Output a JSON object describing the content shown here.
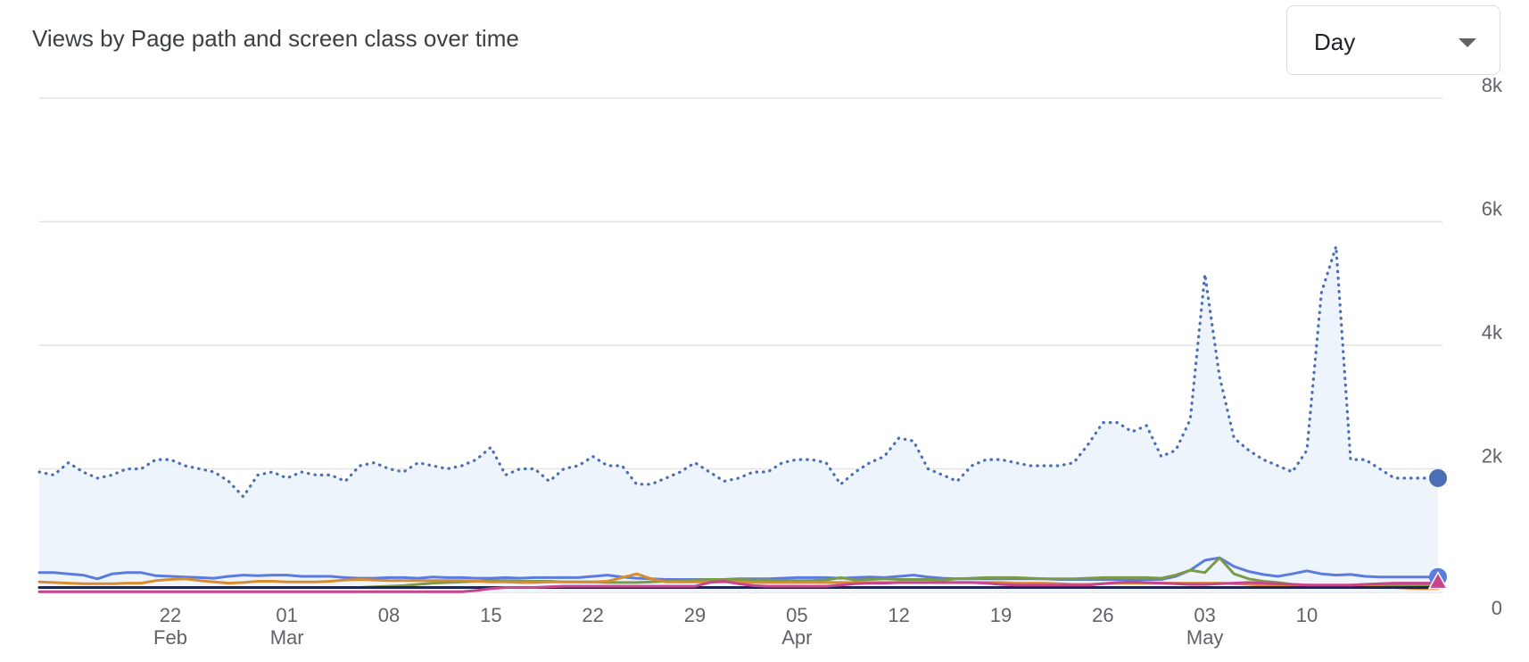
{
  "header": {
    "title": "Views by Page path and screen class over time",
    "granularity": "Day"
  },
  "chart_data": {
    "type": "line",
    "title": "Views by Page path and screen class over time",
    "x": [
      "2024-02-13",
      "2024-02-14",
      "2024-02-15",
      "2024-02-16",
      "2024-02-17",
      "2024-02-18",
      "2024-02-19",
      "2024-02-20",
      "2024-02-21",
      "2024-02-22",
      "2024-02-23",
      "2024-02-24",
      "2024-02-25",
      "2024-02-26",
      "2024-02-27",
      "2024-02-28",
      "2024-02-29",
      "2024-03-01",
      "2024-03-02",
      "2024-03-03",
      "2024-03-04",
      "2024-03-05",
      "2024-03-06",
      "2024-03-07",
      "2024-03-08",
      "2024-03-09",
      "2024-03-10",
      "2024-03-11",
      "2024-03-12",
      "2024-03-13",
      "2024-03-14",
      "2024-03-15",
      "2024-03-16",
      "2024-03-17",
      "2024-03-18",
      "2024-03-19",
      "2024-03-20",
      "2024-03-21",
      "2024-03-22",
      "2024-03-23",
      "2024-03-24",
      "2024-03-25",
      "2024-03-26",
      "2024-03-27",
      "2024-03-28",
      "2024-03-29",
      "2024-03-30",
      "2024-03-31",
      "2024-04-01",
      "2024-04-02",
      "2024-04-03",
      "2024-04-04",
      "2024-04-05",
      "2024-04-06",
      "2024-04-07",
      "2024-04-08",
      "2024-04-09",
      "2024-04-10",
      "2024-04-11",
      "2024-04-12",
      "2024-04-13",
      "2024-04-14",
      "2024-04-15",
      "2024-04-16",
      "2024-04-17",
      "2024-04-18",
      "2024-04-19",
      "2024-04-20",
      "2024-04-21",
      "2024-04-22",
      "2024-04-23",
      "2024-04-24",
      "2024-04-25",
      "2024-04-26",
      "2024-04-27",
      "2024-04-28",
      "2024-04-29",
      "2024-04-30",
      "2024-05-01",
      "2024-05-02",
      "2024-05-03",
      "2024-05-04",
      "2024-05-05",
      "2024-05-06",
      "2024-05-07",
      "2024-05-08",
      "2024-05-09",
      "2024-05-10",
      "2024-05-11",
      "2024-05-12",
      "2024-05-13",
      "2024-05-14",
      "2024-05-15",
      "2024-05-16",
      "2024-05-17",
      "2024-05-18",
      "2024-05-19"
    ],
    "x_ticks": [
      {
        "date": "2024-02-22",
        "label": "22",
        "sub": "Feb"
      },
      {
        "date": "2024-03-01",
        "label": "01",
        "sub": "Mar"
      },
      {
        "date": "2024-03-08",
        "label": "08",
        "sub": ""
      },
      {
        "date": "2024-03-15",
        "label": "15",
        "sub": ""
      },
      {
        "date": "2024-03-22",
        "label": "22",
        "sub": ""
      },
      {
        "date": "2024-03-29",
        "label": "29",
        "sub": ""
      },
      {
        "date": "2024-04-05",
        "label": "05",
        "sub": "Apr"
      },
      {
        "date": "2024-04-12",
        "label": "12",
        "sub": ""
      },
      {
        "date": "2024-04-19",
        "label": "19",
        "sub": ""
      },
      {
        "date": "2024-04-26",
        "label": "26",
        "sub": ""
      },
      {
        "date": "2024-05-03",
        "label": "03",
        "sub": "May"
      },
      {
        "date": "2024-05-10",
        "label": "10",
        "sub": ""
      }
    ],
    "y_ticks": [
      {
        "value": 0,
        "label": "0"
      },
      {
        "value": 2000,
        "label": "2k"
      },
      {
        "value": 4000,
        "label": "4k"
      },
      {
        "value": 6000,
        "label": "6k"
      },
      {
        "value": 8000,
        "label": "8k"
      }
    ],
    "ylim": [
      0,
      8000
    ],
    "grid": true,
    "series": [
      {
        "color": "#4a6fb5",
        "style": "dotted",
        "fill": "#eef4fc",
        "marker": "circle",
        "values": [
          1950,
          1900,
          2100,
          1950,
          1850,
          1900,
          2000,
          2000,
          2150,
          2150,
          2050,
          2000,
          1950,
          1800,
          1550,
          1900,
          1950,
          1850,
          1950,
          1900,
          1900,
          1800,
          2050,
          2100,
          2000,
          1950,
          2100,
          2050,
          2000,
          2050,
          2150,
          2350,
          1900,
          2000,
          2000,
          1800,
          2000,
          2050,
          2200,
          2050,
          2050,
          1750,
          1750,
          1850,
          1950,
          2100,
          1950,
          1800,
          1850,
          1950,
          1950,
          2100,
          2150,
          2150,
          2100,
          1750,
          1950,
          2100,
          2200,
          2500,
          2450,
          2000,
          1900,
          1800,
          2050,
          2150,
          2150,
          2100,
          2050,
          2050,
          2050,
          2100,
          2400,
          2750,
          2750,
          2600,
          2700,
          2200,
          2300,
          2800,
          5150,
          3500,
          2500,
          2300,
          2150,
          2050,
          1950,
          2300,
          4850,
          5600,
          2150,
          2150,
          2000,
          1850,
          1850,
          1850,
          1850
        ]
      },
      {
        "color": "#5b7be0",
        "style": "solid",
        "marker": "circle",
        "values": [
          320,
          320,
          300,
          280,
          220,
          300,
          320,
          320,
          270,
          260,
          250,
          240,
          230,
          260,
          280,
          270,
          280,
          280,
          260,
          260,
          260,
          240,
          230,
          230,
          240,
          240,
          230,
          250,
          240,
          240,
          230,
          230,
          240,
          230,
          240,
          240,
          240,
          240,
          260,
          280,
          250,
          230,
          220,
          210,
          210,
          210,
          210,
          210,
          220,
          220,
          220,
          230,
          240,
          240,
          240,
          230,
          240,
          250,
          240,
          260,
          280,
          250,
          230,
          220,
          220,
          220,
          220,
          220,
          220,
          220,
          210,
          210,
          210,
          210,
          210,
          210,
          210,
          210,
          260,
          360,
          520,
          560,
          420,
          340,
          290,
          260,
          300,
          350,
          300,
          280,
          290,
          260,
          250,
          250,
          250,
          250,
          250
        ]
      },
      {
        "color": "#7a9a48",
        "style": "solid",
        "marker": "none",
        "values": [
          80,
          80,
          80,
          80,
          80,
          80,
          80,
          80,
          80,
          80,
          80,
          80,
          80,
          80,
          80,
          80,
          80,
          80,
          80,
          80,
          80,
          80,
          80,
          90,
          100,
          110,
          130,
          150,
          160,
          170,
          180,
          190,
          190,
          180,
          180,
          180,
          170,
          170,
          170,
          160,
          160,
          160,
          170,
          180,
          190,
          200,
          210,
          210,
          210,
          200,
          200,
          190,
          190,
          190,
          200,
          240,
          200,
          210,
          220,
          210,
          210,
          210,
          200,
          220,
          230,
          240,
          240,
          240,
          230,
          220,
          220,
          220,
          230,
          240,
          240,
          240,
          240,
          230,
          280,
          360,
          320,
          560,
          300,
          220,
          180,
          160,
          130,
          120,
          110,
          110,
          110,
          110,
          110,
          110,
          110,
          110,
          110
        ]
      },
      {
        "color": "#d98c2f",
        "style": "solid",
        "marker": "none",
        "values": [
          170,
          160,
          150,
          140,
          140,
          140,
          150,
          150,
          190,
          210,
          220,
          190,
          170,
          150,
          160,
          180,
          180,
          170,
          170,
          170,
          180,
          200,
          210,
          200,
          190,
          190,
          190,
          190,
          190,
          190,
          180,
          170,
          170,
          160,
          160,
          170,
          170,
          170,
          170,
          180,
          240,
          300,
          220,
          170,
          170,
          170,
          170,
          170,
          170,
          160,
          160,
          160,
          160,
          160,
          160,
          160,
          160,
          160,
          160,
          160,
          160,
          160,
          160,
          160,
          160,
          160,
          160,
          150,
          150,
          150,
          140,
          130,
          130,
          140,
          150,
          150,
          150,
          150,
          150,
          150,
          150,
          150,
          140,
          130,
          120,
          110,
          100,
          100,
          100,
          100,
          90,
          90,
          90,
          80,
          70,
          60,
          60
        ]
      },
      {
        "color": "#1a2560",
        "style": "solid",
        "marker": "none",
        "values": [
          80,
          80,
          80,
          80,
          80,
          80,
          80,
          80,
          80,
          80,
          80,
          80,
          80,
          80,
          80,
          80,
          80,
          80,
          80,
          80,
          80,
          80,
          80,
          80,
          80,
          80,
          80,
          80,
          80,
          80,
          80,
          80,
          80,
          80,
          80,
          80,
          80,
          80,
          80,
          80,
          80,
          80,
          80,
          80,
          80,
          80,
          80,
          80,
          80,
          80,
          80,
          80,
          80,
          80,
          80,
          80,
          80,
          80,
          80,
          80,
          80,
          80,
          80,
          80,
          80,
          80,
          80,
          80,
          80,
          80,
          80,
          80,
          80,
          80,
          80,
          80,
          80,
          80,
          80,
          80,
          80,
          80,
          80,
          80,
          80,
          80,
          80,
          80,
          80,
          80,
          80,
          80,
          80,
          80,
          80,
          80,
          80
        ]
      },
      {
        "color": "#c8448c",
        "style": "solid",
        "marker": "triangle",
        "values": [
          10,
          10,
          10,
          10,
          10,
          10,
          10,
          10,
          10,
          10,
          10,
          10,
          10,
          10,
          10,
          10,
          10,
          10,
          10,
          10,
          10,
          10,
          10,
          10,
          10,
          10,
          10,
          10,
          10,
          10,
          30,
          60,
          80,
          80,
          80,
          90,
          100,
          100,
          100,
          100,
          100,
          100,
          100,
          100,
          100,
          100,
          160,
          180,
          140,
          110,
          100,
          100,
          100,
          100,
          100,
          120,
          140,
          150,
          150,
          160,
          160,
          160,
          160,
          160,
          160,
          150,
          130,
          120,
          120,
          120,
          120,
          120,
          120,
          140,
          160,
          170,
          160,
          150,
          140,
          130,
          130,
          140,
          150,
          160,
          150,
          140,
          130,
          120,
          120,
          120,
          120,
          130,
          140,
          150,
          150,
          150,
          150
        ]
      }
    ]
  }
}
